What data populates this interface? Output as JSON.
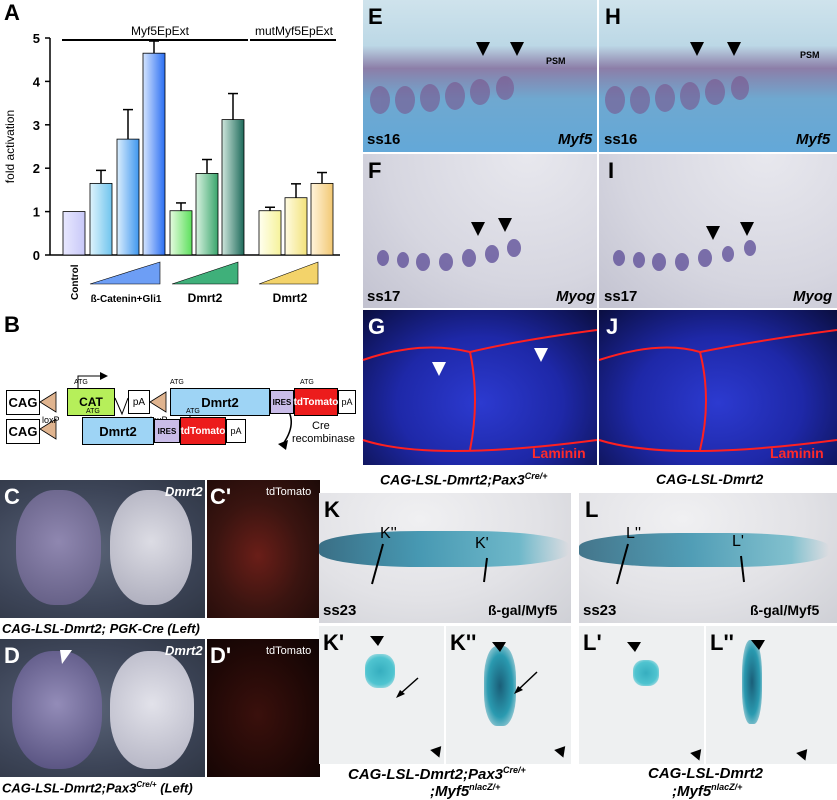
{
  "panels": {
    "A": "A",
    "B": "B",
    "C": "C",
    "C2": "C'",
    "D": "D",
    "D2": "D'",
    "E": "E",
    "F": "F",
    "G": "G",
    "H": "H",
    "I": "I",
    "J": "J",
    "K": "K",
    "L": "L",
    "K1": "K'",
    "K2": "K''",
    "L1": "L'",
    "L2": "L''"
  },
  "chart_data": {
    "type": "bar",
    "ylabel": "fold activation",
    "ylim": [
      0,
      5
    ],
    "yticks": [
      "0",
      "1",
      "2",
      "3",
      "4",
      "5"
    ],
    "group_labels": {
      "wt": "Myf5EpExt",
      "mut": "mutMyf5EpExt"
    },
    "xlabels": {
      "control": "Control",
      "bcat": "ß-Catenin+Gli1",
      "dmrt_wt": "Dmrt2",
      "dmrt_mut": "Dmrt2"
    },
    "values": [
      1.0,
      1.65,
      2.67,
      4.65,
      1.02,
      1.88,
      3.12,
      1.02,
      1.32,
      1.65
    ],
    "errors": [
      0.0,
      0.3,
      0.68,
      0.28,
      0.18,
      0.32,
      0.6,
      0.08,
      0.32,
      0.25
    ],
    "colors": [
      "#c8c8f8",
      "#6fc4ee",
      "#3f97ef",
      "#2a6ef2",
      "#5ce05c",
      "#3aa56c",
      "#1d6a5a",
      "#f6f29a",
      "#f2e27a",
      "#f2c873"
    ],
    "gradients": [
      "#e8e8ff",
      "#dff4fc",
      "#dbeefd",
      "#d6e6ff",
      "#e6fbe0",
      "#d8f2e0",
      "#cfe6dd",
      "#fffff0",
      "#fffbe2",
      "#fff4dc"
    ]
  },
  "constructs": {
    "cag": "CAG",
    "cat": "CAT",
    "pa": "pA",
    "dmrt2": "Dmrt2",
    "ires": "IRES",
    "tdtomato": "tdTomato",
    "atg": "ATG",
    "loxp": "loxP",
    "cre": "Cre",
    "recombinase": "recombinase"
  },
  "whole_mount": {
    "dmrt2": "Dmrt2",
    "tdtomato": "tdTomato",
    "caption_c": "CAG-LSL-Dmrt2; PGK-Cre (Left)",
    "caption_d_pre": "CAG-LSL-Dmrt2;Pax3",
    "caption_d_sup": "Cre/+",
    "caption_d_post": " (Left)"
  },
  "sections": {
    "psm": "PSM",
    "ss16": "ss16",
    "ss17": "ss17",
    "ss23": "ss23",
    "myf5": "Myf5",
    "myog": "Myog",
    "laminin": "Laminin",
    "bgal": "ß-gal/Myf5",
    "k_line1": "K''",
    "k_line2": "K'",
    "l_line1": "L''",
    "l_line2": "L'",
    "cap_g_pre": "CAG-LSL-Dmrt2;Pax3",
    "cap_g_sup": "Cre/+",
    "cap_j": "CAG-LSL-Dmrt2",
    "cap_k_pre": "CAG-LSL-Dmrt2;Pax3",
    "cap_k_sup": "Cre/+",
    "cap_k2_pre": ";Myf5",
    "cap_k2_sup": "nlacZ/+",
    "cap_l": "CAG-LSL-Dmrt2",
    "cap_l2_pre": ";Myf5",
    "cap_l2_sup": "nlacZ/+"
  }
}
